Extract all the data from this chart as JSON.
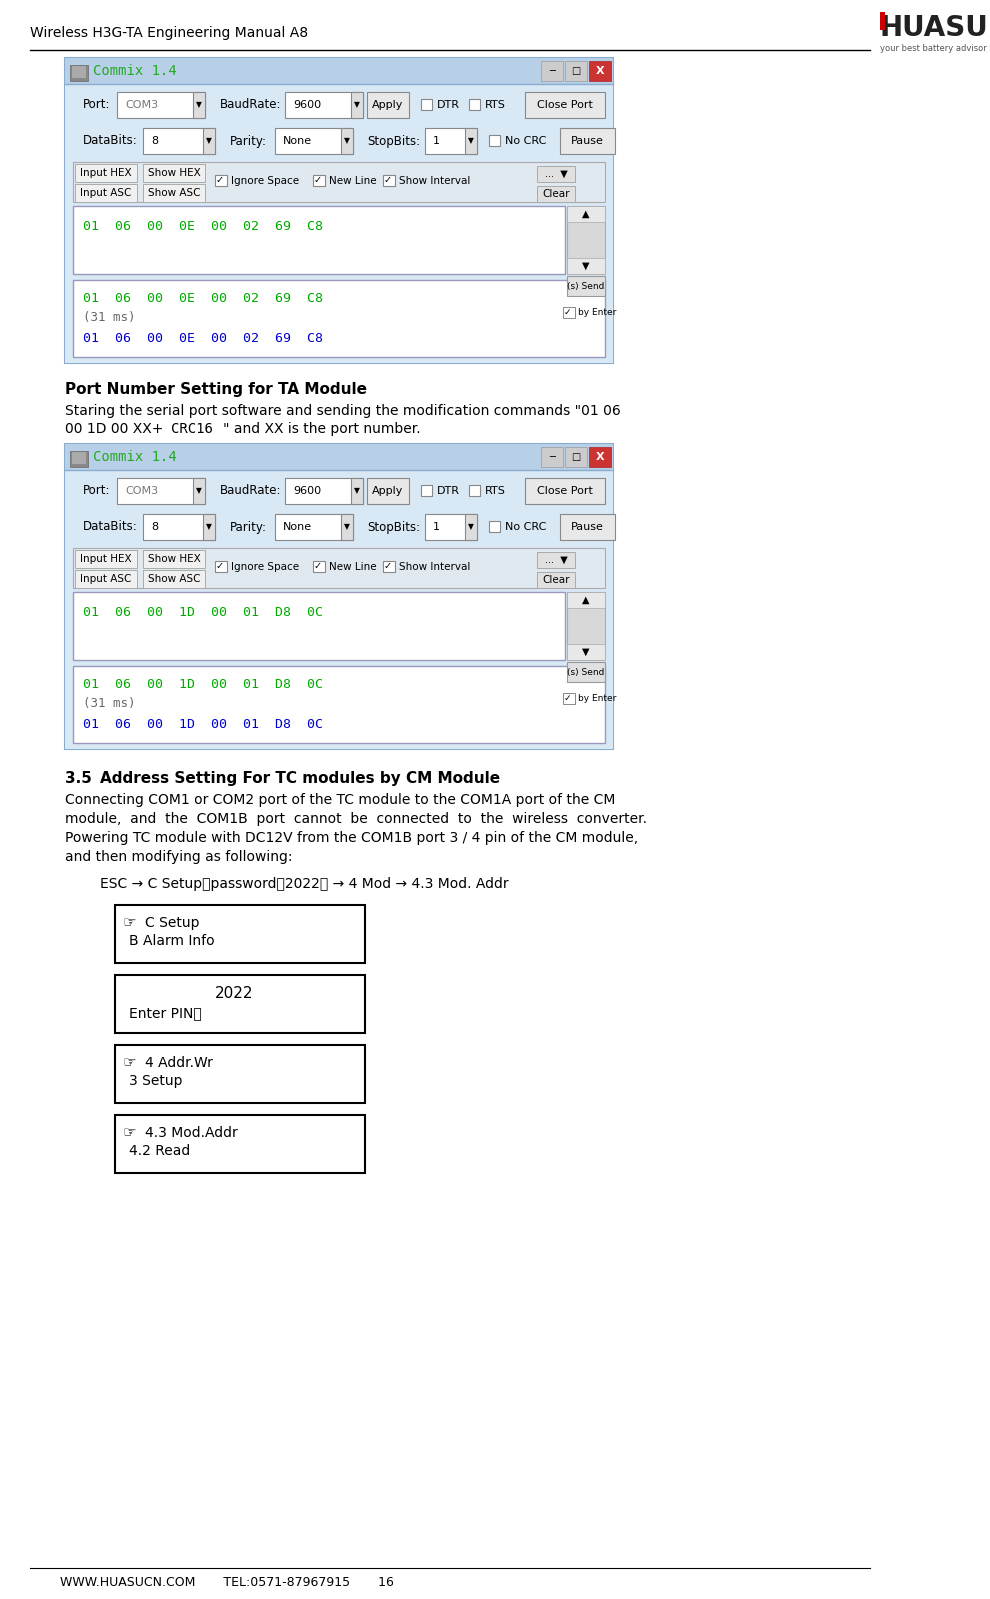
{
  "header_title": "Wireless H3G-TA Engineering Manual A8",
  "footer_text": "WWW.HUASUCN.COM       TEL:0571-87967915       16",
  "logo_text": "HUASU",
  "logo_sub": "your best battery advisor",
  "section_title1": "Port Number Setting for TA Module",
  "section_num": "3.5",
  "section_title2": "Address Setting For TC modules by CM Module",
  "esc_line": "ESC → C Setup（password：2022） → 4 Mod → 4.3 Mod. Addr",
  "box1_line1": "B Alarm Info",
  "box1_line2": "C Setup",
  "box2_line1": "Enter PIN：",
  "box2_line2": "2022",
  "box3_line1": "3 Setup",
  "box3_line2": "4 Addr.Wr",
  "box4_line1": "4.2 Read",
  "box4_line2": "4.3 Mod.Addr",
  "commix_title": "Commix 1.4",
  "win1_input_line": "01  06  00  0E  00  02  69  C8",
  "win1_out1": "01  06  00  0E  00  02  69  C8",
  "win1_out2": "(31 ms)",
  "win1_out3": "01  06  00  0E  00  02  69  C8",
  "win2_input_line": "01  06  00  1D  00  01  D8  0C",
  "win2_out1": "01  06  00  1D  00  01  D8  0C",
  "win2_out2": "(31 ms)",
  "win2_out3": "01  06  00  1D  00  01  D8  0C",
  "bg_color": "#ffffff",
  "win_outer_bg": "#c8d8ec",
  "win_inner_bg": "#d8e8f5",
  "win_title_bg": "#b8cfe8",
  "win_border": "#8aaccf",
  "green_text": "#00aa00",
  "blue_text": "#0000cc",
  "gray_text": "#666666",
  "close_btn": "#cc3333",
  "text_area_bg": "#ffffff",
  "text_area_border": "#aaaacc",
  "body1_line1": "Staring the serial port software and sending the modification commands \"01 06",
  "body1_line2a": "00 1D 00 XX+",
  "body1_line2b": "CRC16",
  "body1_line2c": "\" and XX is the port number.",
  "body2_line1": "Connecting COM1 or COM2 port of the TC module to the COM1A port of the CM",
  "body2_line2": "module,  and  the  COM1B  port  cannot  be  connected  to  the  wireless  converter.",
  "body2_line3": "Powering TC module with DC12V from the COM1B port 3 / 4 pin of the CM module,",
  "body2_line4": "and then modifying as following:"
}
